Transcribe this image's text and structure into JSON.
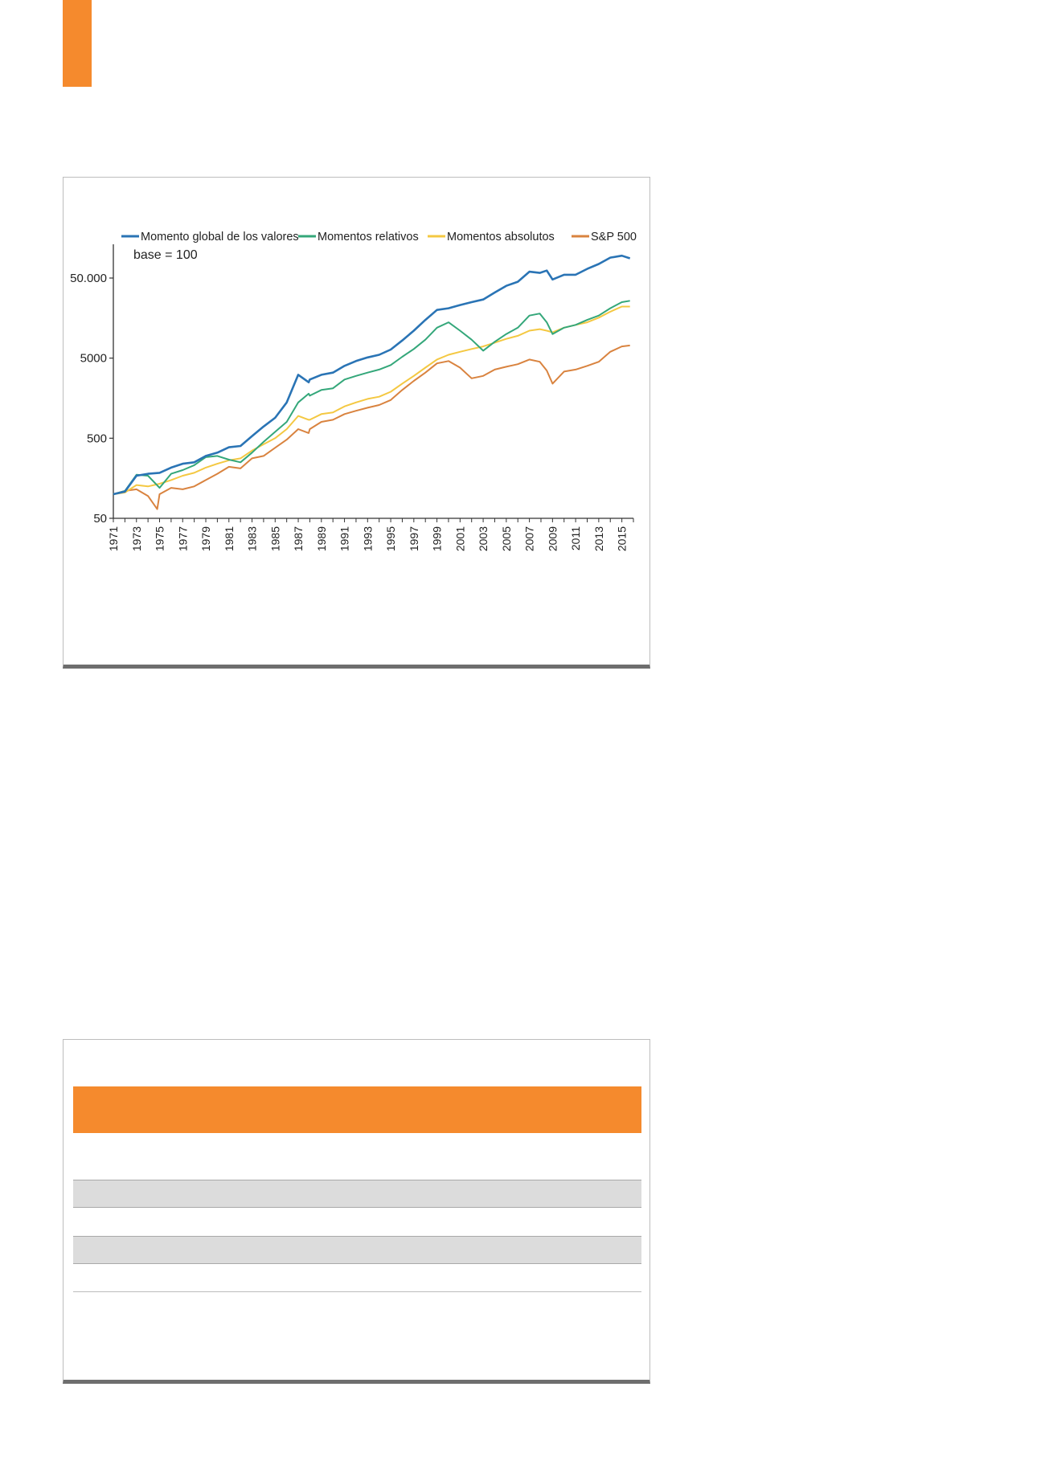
{
  "chart_data": {
    "type": "line",
    "yscale": "log",
    "ylim": [
      50,
      100000
    ],
    "xlim": [
      1971,
      2016
    ],
    "yticks": [
      {
        "value": 50,
        "label": "50"
      },
      {
        "value": 500,
        "label": "500"
      },
      {
        "value": 5000,
        "label": "5000"
      },
      {
        "value": 50000,
        "label": "50.000"
      }
    ],
    "xticks": [
      "1971",
      "1973",
      "1975",
      "1977",
      "1979",
      "1981",
      "1983",
      "1985",
      "1987",
      "1989",
      "1991",
      "1993",
      "1995",
      "1997",
      "1999",
      "2001",
      "2003",
      "2005",
      "2007",
      "2009",
      "2011",
      "2013",
      "2015"
    ],
    "annotation": "base = 100",
    "legend_position": "top",
    "grid": false,
    "series": [
      {
        "name": "Momento global de los valores",
        "color": "#2a74b5",
        "x": [
          1971,
          1972,
          1973,
          1974,
          1975,
          1976,
          1977,
          1978,
          1979,
          1980,
          1981,
          1982,
          1983,
          1984,
          1985,
          1986,
          1987,
          1987.9,
          1988,
          1989,
          1990,
          1991,
          1992,
          1993,
          1994,
          1995,
          1996,
          1997,
          1998,
          1999,
          2000,
          2001,
          2002,
          2003,
          2004,
          2005,
          2006,
          2007,
          2007.9,
          2008.5,
          2009,
          2010,
          2011,
          2012,
          2013,
          2014,
          2015,
          2015.7
        ],
        "values": [
          100,
          108,
          170,
          180,
          185,
          215,
          240,
          250,
          300,
          330,
          385,
          400,
          530,
          700,
          900,
          1400,
          3100,
          2500,
          2700,
          3100,
          3300,
          4000,
          4600,
          5100,
          5500,
          6400,
          8300,
          11000,
          15000,
          20000,
          21000,
          23000,
          25000,
          27000,
          33000,
          40000,
          45000,
          60000,
          58000,
          62000,
          48000,
          55000,
          55000,
          65000,
          75000,
          90000,
          95000,
          88000
        ]
      },
      {
        "name": "Momentos relativos",
        "color": "#34a77a",
        "x": [
          1971,
          1972,
          1973,
          1974,
          1975,
          1976,
          1977,
          1978,
          1979,
          1980,
          1981,
          1982,
          1983,
          1984,
          1985,
          1986,
          1987,
          1987.9,
          1988,
          1989,
          1990,
          1991,
          1992,
          1993,
          1994,
          1995,
          1996,
          1997,
          1998,
          1999,
          2000,
          2001,
          2002,
          2003,
          2004,
          2005,
          2006,
          2007,
          2007.9,
          2008.5,
          2009,
          2010,
          2011,
          2012,
          2013,
          2014,
          2015,
          2015.7
        ],
        "values": [
          100,
          110,
          175,
          170,
          120,
          180,
          200,
          230,
          290,
          300,
          270,
          250,
          330,
          450,
          600,
          800,
          1400,
          1800,
          1700,
          2000,
          2100,
          2700,
          3000,
          3300,
          3600,
          4100,
          5200,
          6500,
          8500,
          12000,
          14000,
          11000,
          8500,
          6200,
          8000,
          10000,
          12000,
          17000,
          18000,
          14000,
          10000,
          12000,
          13000,
          15000,
          17000,
          21000,
          25000,
          26000
        ]
      },
      {
        "name": "Momentos absolutos",
        "color": "#f4c842",
        "x": [
          1971,
          1972,
          1973,
          1974,
          1975,
          1976,
          1977,
          1978,
          1979,
          1980,
          1981,
          1982,
          1983,
          1984,
          1985,
          1986,
          1987,
          1987.9,
          1988,
          1989,
          1990,
          1991,
          1992,
          1993,
          1994,
          1995,
          1996,
          1997,
          1998,
          1999,
          2000,
          2001,
          2002,
          2003,
          2004,
          2005,
          2006,
          2007,
          2007.9,
          2008.5,
          2009,
          2010,
          2011,
          2012,
          2013,
          2014,
          2015,
          2015.7
        ],
        "values": [
          100,
          105,
          130,
          125,
          135,
          150,
          170,
          185,
          215,
          240,
          265,
          280,
          350,
          420,
          500,
          650,
          950,
          850,
          850,
          1000,
          1050,
          1250,
          1400,
          1550,
          1650,
          1900,
          2400,
          3000,
          3800,
          4800,
          5500,
          6000,
          6500,
          7000,
          7800,
          8700,
          9500,
          11000,
          11500,
          11000,
          10500,
          12000,
          13000,
          14000,
          16000,
          19000,
          22000,
          22000
        ]
      },
      {
        "name": "S&P 500",
        "color": "#d9833f",
        "x": [
          1971,
          1972,
          1973,
          1974,
          1974.8,
          1975,
          1976,
          1977,
          1978,
          1979,
          1980,
          1981,
          1982,
          1983,
          1984,
          1985,
          1986,
          1987,
          1987.9,
          1988,
          1989,
          1990,
          1991,
          1992,
          1993,
          1994,
          1995,
          1996,
          1997,
          1998,
          1999,
          2000,
          2001,
          2002,
          2003,
          2004,
          2005,
          2006,
          2007,
          2007.9,
          2008.5,
          2009,
          2010,
          2011,
          2012,
          2013,
          2014,
          2015,
          2015.7
        ],
        "values": [
          100,
          110,
          115,
          95,
          65,
          100,
          120,
          115,
          125,
          150,
          180,
          220,
          210,
          280,
          300,
          380,
          480,
          650,
          580,
          650,
          800,
          850,
          1000,
          1100,
          1200,
          1300,
          1500,
          2000,
          2600,
          3300,
          4300,
          4600,
          3800,
          2800,
          3000,
          3600,
          3900,
          4200,
          4800,
          4500,
          3500,
          2400,
          3400,
          3600,
          4000,
          4500,
          6000,
          7000,
          7200
        ]
      }
    ]
  }
}
